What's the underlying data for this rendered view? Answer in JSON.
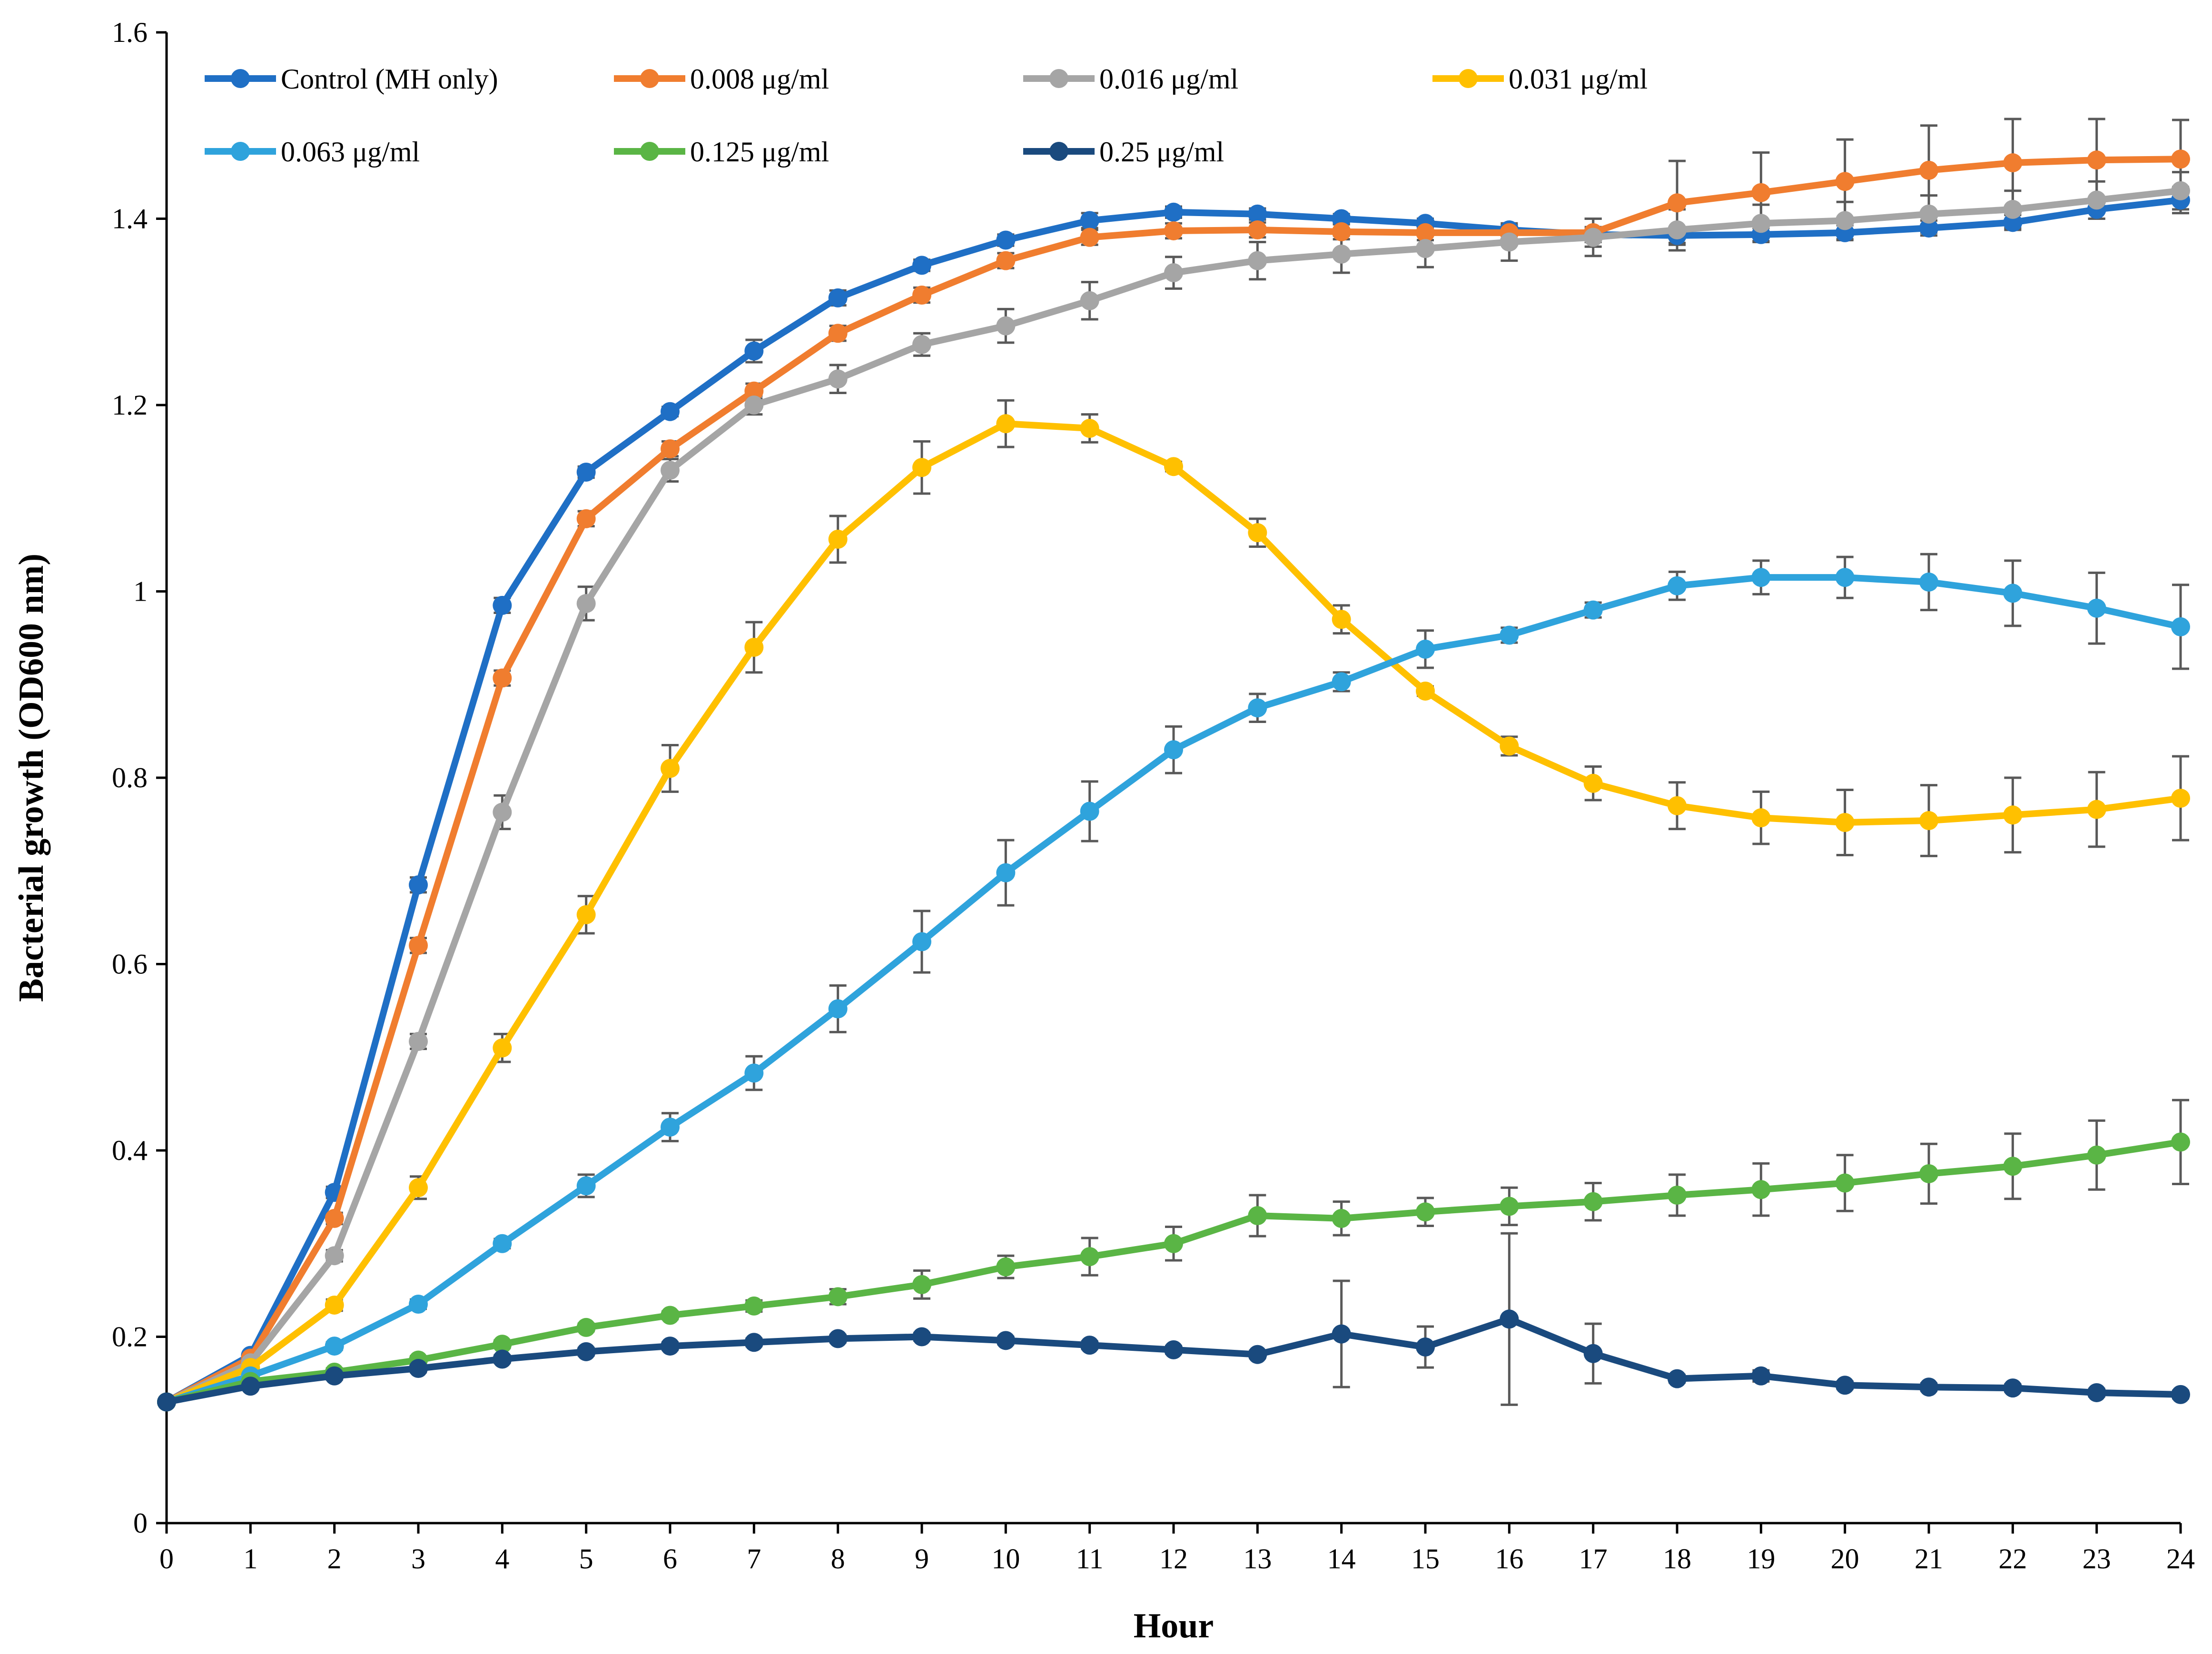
{
  "chart_data": {
    "type": "line",
    "xlabel": "Hour",
    "ylabel": "Bacterial growth (OD600 nm)",
    "xlim": [
      0,
      24
    ],
    "ylim": [
      0,
      1.6
    ],
    "x_ticks": [
      "0",
      "1",
      "2",
      "3",
      "4",
      "5",
      "6",
      "7",
      "8",
      "9",
      "10",
      "11",
      "12",
      "13",
      "14",
      "15",
      "16",
      "17",
      "18",
      "19",
      "20",
      "21",
      "22",
      "23",
      "24"
    ],
    "y_ticks": [
      "0",
      "0.2",
      "0.4",
      "0.6",
      "0.8",
      "1",
      "1.2",
      "1.4",
      "1.6"
    ],
    "x": [
      0,
      1,
      2,
      3,
      4,
      5,
      6,
      7,
      8,
      9,
      10,
      11,
      12,
      13,
      14,
      15,
      16,
      17,
      18,
      19,
      20,
      21,
      22,
      23,
      24
    ],
    "grid": false,
    "legend_position": "top-left",
    "series": [
      {
        "name": "Control (MH only)",
        "color": "#1F6FC5",
        "values": [
          0.13,
          0.18,
          0.355,
          0.685,
          0.985,
          1.128,
          1.193,
          1.258,
          1.315,
          1.35,
          1.377,
          1.398,
          1.407,
          1.405,
          1.4,
          1.395,
          1.388,
          1.383,
          1.382,
          1.383,
          1.385,
          1.39,
          1.396,
          1.41,
          1.42
        ],
        "errors": [
          0,
          0.003,
          0.006,
          0.008,
          0.008,
          0.006,
          0.005,
          0.012,
          0.008,
          0.006,
          0.006,
          0.008,
          0.006,
          0.006,
          0.005,
          0.005,
          0.005,
          0.008,
          0.008,
          0.007,
          0.008,
          0.008,
          0.008,
          0.01,
          0.014
        ]
      },
      {
        "name": "0.008 μg/ml",
        "color": "#F07D2F",
        "values": [
          0.13,
          0.177,
          0.327,
          0.62,
          0.907,
          1.078,
          1.153,
          1.215,
          1.277,
          1.318,
          1.355,
          1.38,
          1.387,
          1.388,
          1.386,
          1.385,
          1.385,
          1.385,
          1.417,
          1.428,
          1.44,
          1.452,
          1.46,
          1.463,
          1.464
        ],
        "errors": [
          0,
          0.003,
          0.006,
          0.008,
          0.008,
          0.008,
          0.008,
          0.008,
          0.008,
          0.008,
          0.008,
          0.008,
          0.008,
          0.008,
          0.008,
          0.008,
          0.008,
          0.015,
          0.045,
          0.043,
          0.045,
          0.048,
          0.047,
          0.044,
          0.042
        ]
      },
      {
        "name": "0.016 μg/ml",
        "color": "#A5A5A5",
        "values": [
          0.13,
          0.172,
          0.287,
          0.517,
          0.763,
          0.987,
          1.13,
          1.2,
          1.228,
          1.265,
          1.285,
          1.312,
          1.342,
          1.355,
          1.362,
          1.368,
          1.375,
          1.38,
          1.388,
          1.395,
          1.398,
          1.405,
          1.41,
          1.42,
          1.43
        ],
        "errors": [
          0,
          0.003,
          0.006,
          0.008,
          0.018,
          0.018,
          0.012,
          0.01,
          0.015,
          0.012,
          0.018,
          0.02,
          0.017,
          0.02,
          0.02,
          0.02,
          0.02,
          0.02,
          0.022,
          0.02,
          0.02,
          0.02,
          0.02,
          0.02,
          0.02
        ]
      },
      {
        "name": "0.031 μg/ml",
        "color": "#FFC000",
        "values": [
          0.13,
          0.167,
          0.234,
          0.36,
          0.51,
          0.653,
          0.81,
          0.94,
          1.056,
          1.133,
          1.18,
          1.175,
          1.134,
          1.063,
          0.97,
          0.893,
          0.834,
          0.794,
          0.77,
          0.757,
          0.752,
          0.754,
          0.76,
          0.766,
          0.778
        ],
        "errors": [
          0,
          0.003,
          0.006,
          0.012,
          0.015,
          0.02,
          0.025,
          0.027,
          0.025,
          0.028,
          0.025,
          0.015,
          0.005,
          0.015,
          0.015,
          0.005,
          0.01,
          0.018,
          0.025,
          0.028,
          0.035,
          0.038,
          0.04,
          0.04,
          0.045
        ]
      },
      {
        "name": "0.063 μg/ml",
        "color": "#2FA3DC",
        "values": [
          0.13,
          0.158,
          0.19,
          0.235,
          0.3,
          0.362,
          0.425,
          0.483,
          0.552,
          0.624,
          0.698,
          0.764,
          0.83,
          0.875,
          0.903,
          0.938,
          0.953,
          0.98,
          1.006,
          1.015,
          1.015,
          1.01,
          0.998,
          0.982,
          0.962
        ],
        "errors": [
          0,
          0.003,
          0.004,
          0.005,
          0.005,
          0.012,
          0.015,
          0.018,
          0.025,
          0.033,
          0.035,
          0.032,
          0.025,
          0.015,
          0.01,
          0.02,
          0.008,
          0.008,
          0.015,
          0.018,
          0.022,
          0.03,
          0.035,
          0.038,
          0.045
        ]
      },
      {
        "name": "0.125 μg/ml",
        "color": "#5AB545",
        "values": [
          0.13,
          0.152,
          0.162,
          0.175,
          0.192,
          0.21,
          0.223,
          0.233,
          0.243,
          0.256,
          0.275,
          0.286,
          0.3,
          0.33,
          0.327,
          0.334,
          0.34,
          0.345,
          0.352,
          0.358,
          0.365,
          0.375,
          0.383,
          0.395,
          0.409
        ],
        "errors": [
          0,
          0.003,
          0.004,
          0.004,
          0.004,
          0.004,
          0.004,
          0.006,
          0.008,
          0.015,
          0.012,
          0.02,
          0.018,
          0.022,
          0.018,
          0.015,
          0.02,
          0.02,
          0.022,
          0.028,
          0.03,
          0.032,
          0.035,
          0.037,
          0.045
        ]
      },
      {
        "name": "0.25 μg/ml",
        "color": "#1A4A7E",
        "values": [
          0.13,
          0.147,
          0.158,
          0.166,
          0.176,
          0.184,
          0.19,
          0.194,
          0.198,
          0.2,
          0.196,
          0.191,
          0.186,
          0.181,
          0.203,
          0.189,
          0.219,
          0.182,
          0.155,
          0.158,
          0.148,
          0.146,
          0.145,
          0.14,
          0.138
        ],
        "errors": [
          0,
          0.003,
          0.004,
          0.004,
          0.004,
          0.004,
          0.004,
          0.004,
          0.004,
          0.004,
          0.004,
          0.004,
          0.004,
          0.004,
          0.057,
          0.022,
          0.092,
          0.032,
          0.004,
          0.006,
          0.004,
          0.004,
          0.004,
          0.004,
          0.004
        ]
      }
    ]
  }
}
